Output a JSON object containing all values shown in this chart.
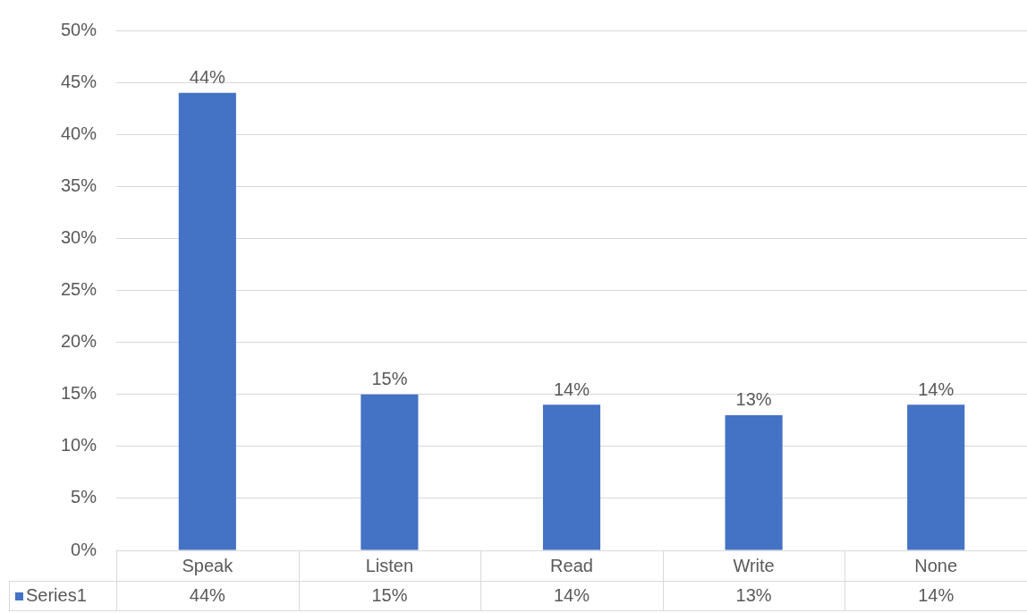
{
  "chart_data": {
    "type": "bar",
    "categories": [
      "Speak",
      "Listen",
      "Read",
      "Write",
      "None"
    ],
    "series": [
      {
        "name": "Series1",
        "color": "#4472c4",
        "values": [
          44,
          15,
          14,
          13,
          14
        ],
        "value_labels": [
          "44%",
          "15%",
          "14%",
          "13%",
          "14%"
        ]
      }
    ],
    "ylim": [
      0,
      50
    ],
    "yticks": [
      {
        "value": 0,
        "label": "0%"
      },
      {
        "value": 5,
        "label": "5%"
      },
      {
        "value": 10,
        "label": "10%"
      },
      {
        "value": 15,
        "label": "15%"
      },
      {
        "value": 20,
        "label": "20%"
      },
      {
        "value": 25,
        "label": "25%"
      },
      {
        "value": 30,
        "label": "30%"
      },
      {
        "value": 35,
        "label": "35%"
      },
      {
        "value": 40,
        "label": "40%"
      },
      {
        "value": 45,
        "label": "45%"
      },
      {
        "value": 50,
        "label": "50%"
      }
    ],
    "grid": "y",
    "legend": "bottom"
  }
}
